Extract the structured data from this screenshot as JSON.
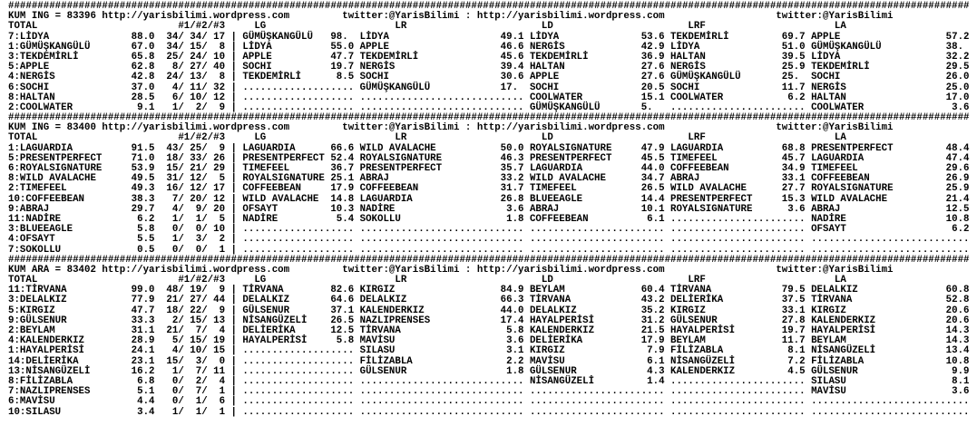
{
  "rule": "####################################################################################################################################################################",
  "url": "http://yarisbilimi.wordpress.com",
  "twitter": "twitter:@YarisBilimi",
  "separator": ":",
  "total_label": "TOTAL",
  "picks_label": "#1/#2/#3",
  "group_headers": [
    "LG",
    "LR",
    "LD",
    "LRF",
    "LA"
  ],
  "colors": {
    "text": "#000000",
    "background": "#ffffff"
  },
  "blocks": [
    {
      "race": "KUM ING = 83396",
      "rows": [
        {
          "label": "7:LİDYA",
          "total": "88.0",
          "picks": [
            "34",
            "34",
            "17"
          ],
          "groups": [
            [
              "GÜMÜŞKANGÜLÜ",
              "98."
            ],
            [
              "LİDYA",
              "49.1"
            ],
            [
              "LİDYA",
              "53.6"
            ],
            [
              "TEKDEMİRLİ",
              "69.7"
            ],
            [
              "APPLE",
              "57.2"
            ]
          ]
        },
        {
          "label": "1:GÜMÜŞKANGÜLÜ",
          "total": "67.0",
          "picks": [
            "34",
            "15",
            "8"
          ],
          "groups": [
            [
              "LİDYA",
              "55.0"
            ],
            [
              "APPLE",
              "46.6"
            ],
            [
              "NERGİS",
              "42.9"
            ],
            [
              "LİDYA",
              "51.0"
            ],
            [
              "GÜMÜŞKANGÜLÜ",
              "38."
            ]
          ]
        },
        {
          "label": "3:TEKDEMİRLİ",
          "total": "65.8",
          "picks": [
            "25",
            "24",
            "10"
          ],
          "groups": [
            [
              "APPLE",
              "47.7"
            ],
            [
              "TEKDEMİRLİ",
              "45.6"
            ],
            [
              "TEKDEMİRLİ",
              "36.9"
            ],
            [
              "HALTAN",
              "39.5"
            ],
            [
              "LİDYA",
              "32.2"
            ]
          ]
        },
        {
          "label": "5:APPLE",
          "total": "62.8",
          "picks": [
            "8",
            "27",
            "40"
          ],
          "groups": [
            [
              "SOCHI",
              "19.7"
            ],
            [
              "NERGİS",
              "39.4"
            ],
            [
              "HALTAN",
              "27.6"
            ],
            [
              "NERGİS",
              "25.9"
            ],
            [
              "TEKDEMİRLİ",
              "29.5"
            ]
          ]
        },
        {
          "label": "4:NERGİS",
          "total": "42.8",
          "picks": [
            "24",
            "13",
            "8"
          ],
          "groups": [
            [
              "TEKDEMİRLİ",
              "8.5"
            ],
            [
              "SOCHI",
              "30.6"
            ],
            [
              "APPLE",
              "27.6"
            ],
            [
              "GÜMÜŞKANGÜLÜ",
              "25."
            ],
            [
              "SOCHI",
              "26.0"
            ]
          ]
        },
        {
          "label": "6:SOCHI",
          "total": "37.0",
          "picks": [
            "4",
            "11",
            "32"
          ],
          "groups": [
            null,
            [
              "GÜMÜŞKANGÜLÜ",
              "17."
            ],
            [
              "SOCHI",
              "20.5"
            ],
            [
              "SOCHI",
              "11.7"
            ],
            [
              "NERGİS",
              "25.0"
            ]
          ]
        },
        {
          "label": "8:HALTAN",
          "total": "28.5",
          "picks": [
            "6",
            "10",
            "12"
          ],
          "groups": [
            null,
            null,
            [
              "COOLWATER",
              "15.1"
            ],
            [
              "COOLWATER",
              "6.2"
            ],
            [
              "HALTAN",
              "17.0"
            ]
          ]
        },
        {
          "label": "2:COOLWATER",
          "total": "9.1",
          "picks": [
            "1",
            "2",
            "9"
          ],
          "groups": [
            null,
            null,
            [
              "GÜMÜŞKANGÜLÜ",
              "5."
            ],
            null,
            [
              "COOLWATER",
              "3.6"
            ]
          ]
        }
      ]
    },
    {
      "race": "KUM ING = 83400",
      "rows": [
        {
          "label": "1:LAGUARDIA",
          "total": "91.5",
          "picks": [
            "43",
            "25",
            "9"
          ],
          "groups": [
            [
              "LAGUARDIA",
              "66.6"
            ],
            [
              "WILD AVALACHE",
              "50.0"
            ],
            [
              "ROYALSIGNATURE",
              "47.9"
            ],
            [
              "LAGUARDIA",
              "68.8"
            ],
            [
              "PRESENTPERFECT",
              "48.4"
            ]
          ]
        },
        {
          "label": "5:PRESENTPERFECT",
          "total": "71.0",
          "picks": [
            "18",
            "33",
            "26"
          ],
          "groups": [
            [
              "PRESENTPERFECT",
              "52.4"
            ],
            [
              "ROYALSIGNATURE",
              "46.3"
            ],
            [
              "PRESENTPERFECT",
              "45.5"
            ],
            [
              "TIMEFEEL",
              "45.7"
            ],
            [
              "LAGUARDIA",
              "47.4"
            ]
          ]
        },
        {
          "label": "6:ROYALSIGNATURE",
          "total": "53.9",
          "picks": [
            "15",
            "21",
            "29"
          ],
          "groups": [
            [
              "TIMEFEEL",
              "36.7"
            ],
            [
              "PRESENTPERFECT",
              "35.7"
            ],
            [
              "LAGUARDIA",
              "44.0"
            ],
            [
              "COFFEEBEAN",
              "34.9"
            ],
            [
              "TIMEFEEL",
              "29.6"
            ]
          ]
        },
        {
          "label": "8:WILD AVALACHE",
          "total": "49.5",
          "picks": [
            "31",
            "12",
            "5"
          ],
          "groups": [
            [
              "ROYALSIGNATURE",
              "25.1"
            ],
            [
              "ABRAJ",
              "33.2"
            ],
            [
              "WILD AVALACHE",
              "34.7"
            ],
            [
              "ABRAJ",
              "33.1"
            ],
            [
              "COFFEEBEAN",
              "26.9"
            ]
          ]
        },
        {
          "label": "2:TIMEFEEL",
          "total": "49.3",
          "picks": [
            "16",
            "12",
            "17"
          ],
          "groups": [
            [
              "COFFEEBEAN",
              "17.9"
            ],
            [
              "COFFEEBEAN",
              "31.7"
            ],
            [
              "TIMEFEEL",
              "26.5"
            ],
            [
              "WILD AVALACHE",
              "27.7"
            ],
            [
              "ROYALSIGNATURE",
              "25.9"
            ]
          ]
        },
        {
          "label": "10:COFFEEBEAN",
          "total": "38.3",
          "picks": [
            "7",
            "20",
            "12"
          ],
          "groups": [
            [
              "WILD AVALACHE",
              "14.8"
            ],
            [
              "LAGUARDIA",
              "26.8"
            ],
            [
              "BLUEEAGLE",
              "14.4"
            ],
            [
              "PRESENTPERFECT",
              "15.3"
            ],
            [
              "WILD AVALACHE",
              "21.4"
            ]
          ]
        },
        {
          "label": "9:ABRAJ",
          "total": "29.7",
          "picks": [
            "4",
            "9",
            "20"
          ],
          "groups": [
            [
              "OFSAYT",
              "10.3"
            ],
            [
              "NADİRE",
              "3.6"
            ],
            [
              "ABRAJ",
              "10.1"
            ],
            [
              "ROYALSIGNATURE",
              "3.6"
            ],
            [
              "ABRAJ",
              "12.5"
            ]
          ]
        },
        {
          "label": "11:NADİRE",
          "total": "6.2",
          "picks": [
            "1",
            "1",
            "5"
          ],
          "groups": [
            [
              "NADİRE",
              "5.4"
            ],
            [
              "SOKOLLU",
              "1.8"
            ],
            [
              "COFFEEBEAN",
              "6.1"
            ],
            null,
            [
              "NADİRE",
              "10.8"
            ]
          ]
        },
        {
          "label": "3:BLUEEAGLE",
          "total": "5.8",
          "picks": [
            "0",
            "0",
            "10"
          ],
          "groups": [
            null,
            null,
            null,
            null,
            [
              "OFSAYT",
              "6.2"
            ]
          ]
        },
        {
          "label": "4:OFSAYT",
          "total": "5.5",
          "picks": [
            "1",
            "3",
            "2"
          ],
          "groups": [
            null,
            null,
            null,
            null,
            null
          ]
        },
        {
          "label": "7:SOKOLLU",
          "total": "0.5",
          "picks": [
            "0",
            "0",
            "1"
          ],
          "groups": [
            null,
            null,
            null,
            null,
            null
          ]
        }
      ]
    },
    {
      "race": "KUM ARA = 83402",
      "rows": [
        {
          "label": "11:TİRVANA",
          "total": "99.0",
          "picks": [
            "48",
            "19",
            "9"
          ],
          "groups": [
            [
              "TİRVANA",
              "82.6"
            ],
            [
              "KIRGIZ",
              "84.9"
            ],
            [
              "BEYLAM",
              "60.4"
            ],
            [
              "TİRVANA",
              "79.5"
            ],
            [
              "DELALKIZ",
              "60.8"
            ]
          ]
        },
        {
          "label": "3:DELALKIZ",
          "total": "77.9",
          "picks": [
            "21",
            "27",
            "44"
          ],
          "groups": [
            [
              "DELALKIZ",
              "64.6"
            ],
            [
              "DELALKIZ",
              "66.3"
            ],
            [
              "TİRVANA",
              "43.2"
            ],
            [
              "DELİERİKA",
              "37.5"
            ],
            [
              "TİRVANA",
              "52.8"
            ]
          ]
        },
        {
          "label": "5:KIRGIZ",
          "total": "47.7",
          "picks": [
            "18",
            "22",
            "9"
          ],
          "groups": [
            [
              "GÜLSENUR",
              "37.1"
            ],
            [
              "KALENDERKIZ",
              "44.0"
            ],
            [
              "DELALKIZ",
              "35.2"
            ],
            [
              "KIRGIZ",
              "33.1"
            ],
            [
              "KIRGIZ",
              "20.6"
            ]
          ]
        },
        {
          "label": "9:GÜLSENUR",
          "total": "33.3",
          "picks": [
            "2",
            "15",
            "13"
          ],
          "groups": [
            [
              "NİSANGÜZELİ",
              "26.5"
            ],
            [
              "NAZLIPRENSES",
              "17.4"
            ],
            [
              "HAYALPERİSİ",
              "31.2"
            ],
            [
              "GÜLSENUR",
              "27.8"
            ],
            [
              "KALENDERKIZ",
              "20.6"
            ]
          ]
        },
        {
          "label": "2:BEYLAM",
          "total": "31.1",
          "picks": [
            "21",
            "7",
            "4"
          ],
          "groups": [
            [
              "DELİERİKA",
              "12.5"
            ],
            [
              "TİRVANA",
              "5.8"
            ],
            [
              "KALENDERKIZ",
              "21.5"
            ],
            [
              "HAYALPERİSİ",
              "19.7"
            ],
            [
              "HAYALPERİSİ",
              "14.3"
            ]
          ]
        },
        {
          "label": "4:KALENDERKIZ",
          "total": "28.9",
          "picks": [
            "5",
            "15",
            "19"
          ],
          "groups": [
            [
              "HAYALPERİSİ",
              "5.8"
            ],
            [
              "MAVİSU",
              "3.6"
            ],
            [
              "DELİERİKA",
              "17.9"
            ],
            [
              "BEYLAM",
              "11.7"
            ],
            [
              "BEYLAM",
              "14.3"
            ]
          ]
        },
        {
          "label": "1:HAYALPERİSİ",
          "total": "24.1",
          "picks": [
            "4",
            "10",
            "15"
          ],
          "groups": [
            null,
            [
              "SILASU",
              "3.1"
            ],
            [
              "KIRGIZ",
              "7.9"
            ],
            [
              "FİLİZABLA",
              "8.1"
            ],
            [
              "NİSANGÜZELİ",
              "13.4"
            ]
          ]
        },
        {
          "label": "14:DELİERİKA",
          "total": "23.1",
          "picks": [
            "15",
            "3",
            "0"
          ],
          "groups": [
            null,
            [
              "FİLİZABLA",
              "2.2"
            ],
            [
              "MAVİSU",
              "6.1"
            ],
            [
              "NİSANGÜZELİ",
              "7.2"
            ],
            [
              "FİLİZABLA",
              "10.8"
            ]
          ]
        },
        {
          "label": "13:NİSANGÜZELİ",
          "total": "16.2",
          "picks": [
            "1",
            "7",
            "11"
          ],
          "groups": [
            null,
            [
              "GÜLSENUR",
              "1.8"
            ],
            [
              "GÜLSENUR",
              "4.3"
            ],
            [
              "KALENDERKIZ",
              "4.5"
            ],
            [
              "GÜLSENUR",
              "9.9"
            ]
          ]
        },
        {
          "label": "8:FİLİZABLA",
          "total": "6.8",
          "picks": [
            "0",
            "2",
            "4"
          ],
          "groups": [
            null,
            null,
            [
              "NİSANGÜZELİ",
              "1.4"
            ],
            null,
            [
              "SILASU",
              "8.1"
            ]
          ]
        },
        {
          "label": "7:NAZLIPRENSES",
          "total": "5.1",
          "picks": [
            "0",
            "7",
            "1"
          ],
          "groups": [
            null,
            null,
            null,
            null,
            [
              "MAVİSU",
              "3.6"
            ]
          ]
        },
        {
          "label": "6:MAVİSU",
          "total": "4.4",
          "picks": [
            "0",
            "1",
            "6"
          ],
          "groups": [
            null,
            null,
            null,
            null,
            null
          ]
        },
        {
          "label": "10:SILASU",
          "total": "3.4",
          "picks": [
            "1",
            "1",
            "1"
          ],
          "groups": [
            null,
            null,
            null,
            null,
            null
          ]
        }
      ]
    }
  ]
}
